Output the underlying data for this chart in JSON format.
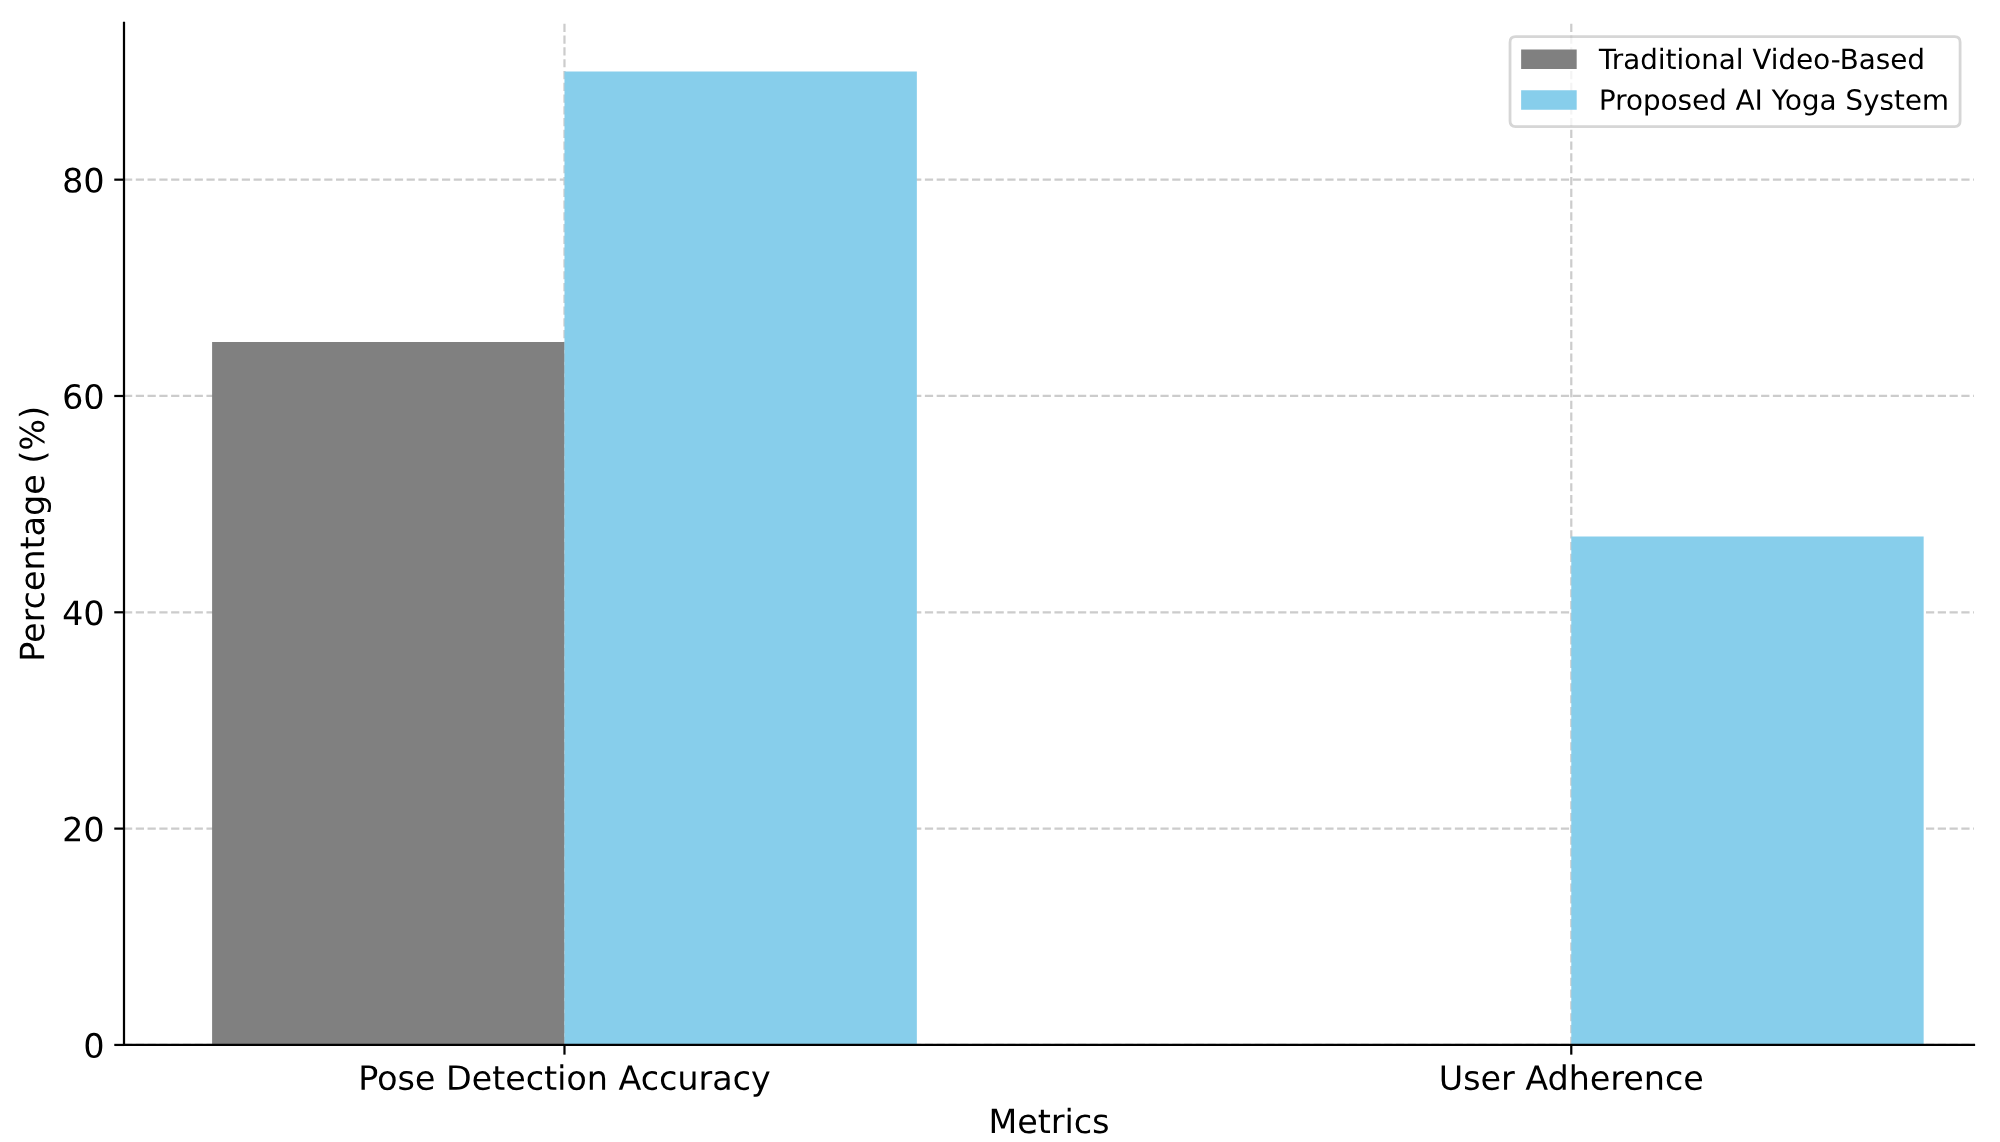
{
  "chart_data": {
    "type": "bar",
    "xlabel": "Metrics",
    "ylabel": "Percentage (%)",
    "categories": [
      "Pose Detection Accuracy",
      "User Adherence"
    ],
    "series": [
      {
        "name": "Traditional Video-Based",
        "color": "#808080",
        "values": [
          65,
          null
        ]
      },
      {
        "name": "Proposed AI Yoga System",
        "color": "#87ceeb",
        "values": [
          90,
          47
        ]
      }
    ],
    "ylim": [
      0,
      94.5
    ],
    "yticks": [
      0,
      20,
      40,
      60,
      80
    ],
    "grid": true,
    "legend": "top right"
  }
}
